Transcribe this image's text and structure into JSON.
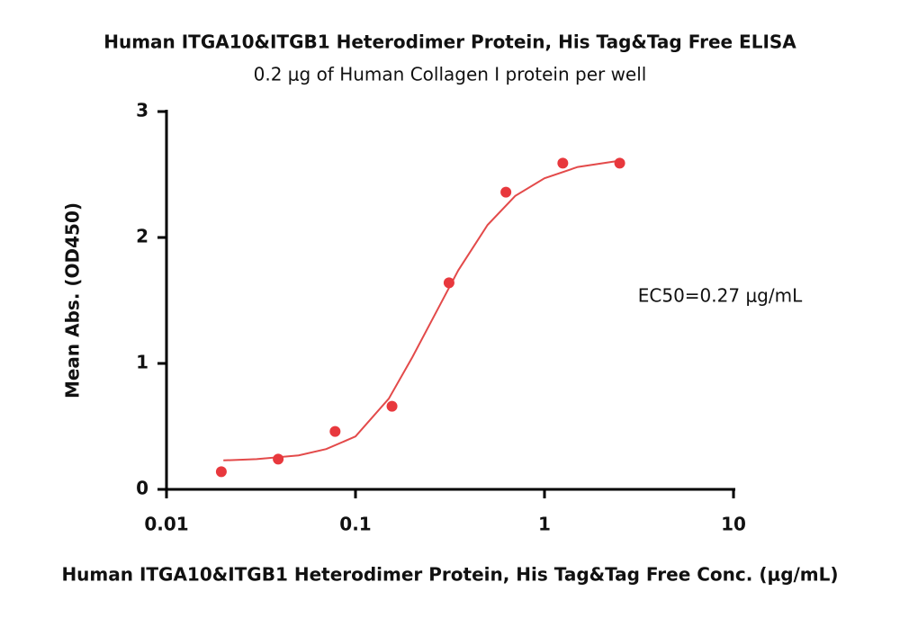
{
  "chart_data": {
    "type": "scatter",
    "title": "Human ITGA10&ITGB1 Heterodimer Protein, His Tag&Tag Free ELISA",
    "subtitle": "0.2 μg of Human Collagen I protein per well",
    "x_label": "Human ITGA10&ITGB1 Heterodimer Protein, His Tag&Tag Free Conc. (μg/mL)",
    "y_label": "Mean Abs. (OD450)",
    "annotation": "EC50=0.27 μg/mL",
    "x": [
      0.0195,
      0.039,
      0.078,
      0.156,
      0.3125,
      0.625,
      1.25,
      2.5
    ],
    "values": [
      0.14,
      0.24,
      0.46,
      0.66,
      1.64,
      2.36,
      2.59,
      2.59
    ],
    "color": "#e8383d",
    "fit": {
      "color": "#e34a4a",
      "x": [
        0.02,
        0.03,
        0.05,
        0.07,
        0.1,
        0.15,
        0.2,
        0.27,
        0.35,
        0.5,
        0.7,
        1,
        1.5,
        2.5
      ],
      "values": [
        0.23,
        0.24,
        0.27,
        0.32,
        0.42,
        0.72,
        1.05,
        1.42,
        1.74,
        2.1,
        2.33,
        2.47,
        2.56,
        2.61
      ]
    },
    "xlim": [
      0.01,
      10
    ],
    "xticks": [
      0.01,
      0.1,
      1,
      10
    ],
    "xscale": "log",
    "ylim": [
      0,
      3
    ],
    "yticks": [
      0,
      1,
      2,
      3
    ]
  }
}
